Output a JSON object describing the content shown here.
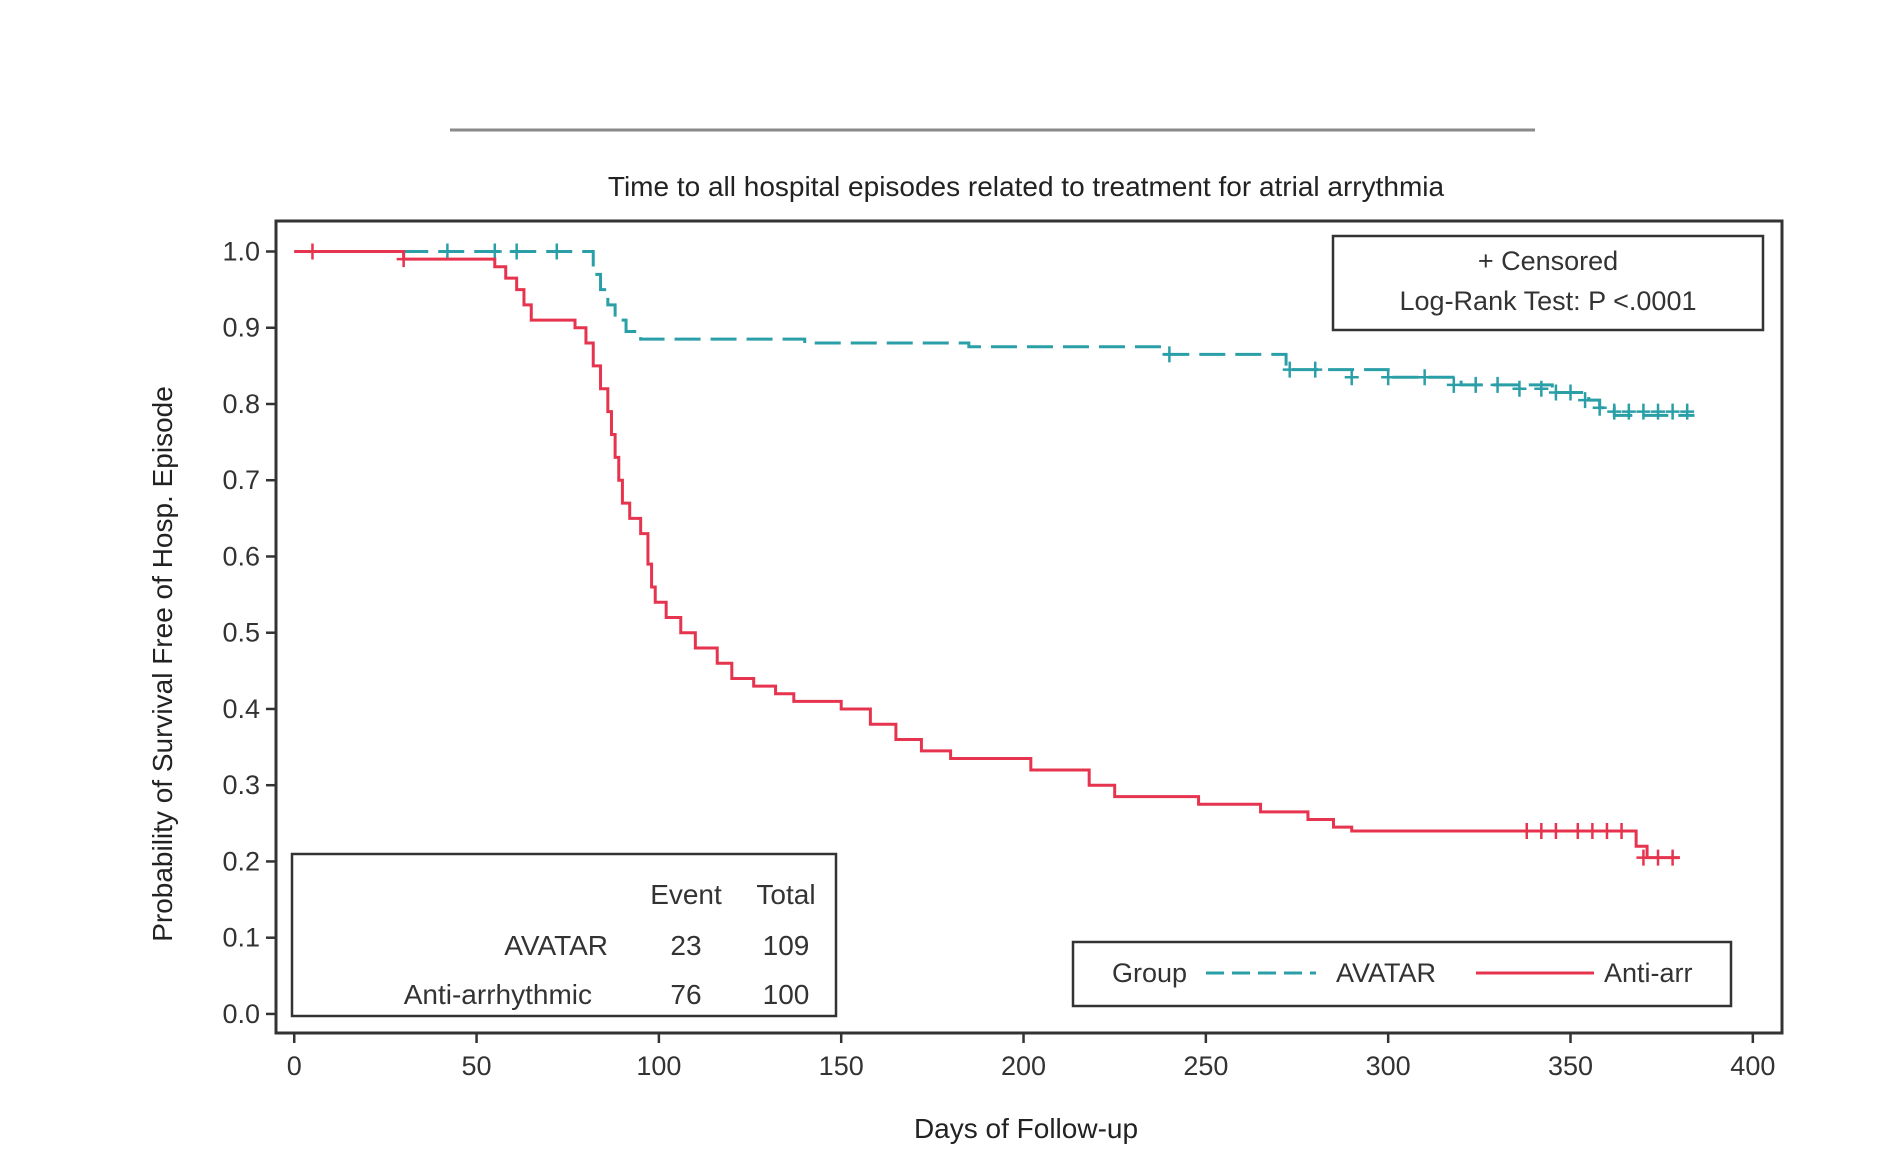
{
  "chart_data": {
    "type": "line",
    "title": "Time to all hospital episodes related to treatment for atrial arrythmia",
    "xlabel": "Days of Follow-up",
    "ylabel": "Probability of Survival Free of Hosp. Episode",
    "xlim": [
      -5,
      408
    ],
    "ylim": [
      -0.025,
      1.04
    ],
    "x_ticks": [
      "0",
      "50",
      "100",
      "150",
      "200",
      "250",
      "300",
      "350",
      "400"
    ],
    "y_ticks": [
      "0.0",
      "0.1",
      "0.2",
      "0.3",
      "0.4",
      "0.5",
      "0.6",
      "0.7",
      "0.8",
      "0.9",
      "1.0"
    ],
    "grid": false,
    "annotation": {
      "censored": "+ Censored",
      "logrank": "Log-Rank Test: P <.0001"
    },
    "risk_table": {
      "header": [
        "Event",
        "Total"
      ],
      "rows": [
        {
          "group": "AVATAR",
          "event": "23",
          "total": "109"
        },
        {
          "group": "Anti-arrhythmic",
          "event": "76",
          "total": "100"
        }
      ]
    },
    "legend": {
      "title": "Group",
      "placement": "bottom-right",
      "items": [
        {
          "label": "AVATAR",
          "color": "#2a9fa8",
          "dash": true
        },
        {
          "label": "Anti-arr",
          "color": "#e6344e",
          "dash": false
        }
      ]
    },
    "series": [
      {
        "name": "AVATAR",
        "color": "#2a9fa8",
        "steps": [
          [
            0,
            1.0
          ],
          [
            82,
            0.97
          ],
          [
            84,
            0.95
          ],
          [
            86,
            0.93
          ],
          [
            88,
            0.91
          ],
          [
            91,
            0.895
          ],
          [
            95,
            0.885
          ],
          [
            140,
            0.88
          ],
          [
            185,
            0.875
          ],
          [
            238,
            0.865
          ],
          [
            272,
            0.845
          ],
          [
            300,
            0.835
          ],
          [
            320,
            0.825
          ],
          [
            345,
            0.815
          ],
          [
            355,
            0.805
          ],
          [
            358,
            0.795
          ],
          [
            362,
            0.785
          ],
          [
            384,
            0.785
          ]
        ],
        "censored": [
          [
            42,
            1.0
          ],
          [
            55,
            1.0
          ],
          [
            61,
            1.0
          ],
          [
            72,
            1.0
          ],
          [
            240,
            0.865
          ],
          [
            273,
            0.845
          ],
          [
            280,
            0.845
          ],
          [
            290,
            0.835
          ],
          [
            300,
            0.835
          ],
          [
            310,
            0.835
          ],
          [
            318,
            0.825
          ],
          [
            324,
            0.825
          ],
          [
            330,
            0.825
          ],
          [
            336,
            0.82
          ],
          [
            342,
            0.82
          ],
          [
            346,
            0.815
          ],
          [
            350,
            0.815
          ],
          [
            354,
            0.805
          ],
          [
            358,
            0.795
          ],
          [
            362,
            0.79
          ],
          [
            366,
            0.79
          ],
          [
            370,
            0.79
          ],
          [
            374,
            0.79
          ],
          [
            378,
            0.79
          ],
          [
            382,
            0.79
          ]
        ]
      },
      {
        "name": "Anti-arrhythmic",
        "color": "#e6344e",
        "steps": [
          [
            0,
            1.0
          ],
          [
            30,
            0.99
          ],
          [
            55,
            0.98
          ],
          [
            58,
            0.965
          ],
          [
            61,
            0.95
          ],
          [
            63,
            0.93
          ],
          [
            65,
            0.91
          ],
          [
            77,
            0.9
          ],
          [
            80,
            0.88
          ],
          [
            82,
            0.85
          ],
          [
            84,
            0.82
          ],
          [
            86,
            0.79
          ],
          [
            87,
            0.76
          ],
          [
            88,
            0.73
          ],
          [
            89,
            0.7
          ],
          [
            90,
            0.67
          ],
          [
            92,
            0.65
          ],
          [
            95,
            0.63
          ],
          [
            97,
            0.59
          ],
          [
            98,
            0.56
          ],
          [
            99,
            0.54
          ],
          [
            102,
            0.52
          ],
          [
            106,
            0.5
          ],
          [
            110,
            0.48
          ],
          [
            116,
            0.46
          ],
          [
            120,
            0.44
          ],
          [
            126,
            0.43
          ],
          [
            132,
            0.42
          ],
          [
            137,
            0.41
          ],
          [
            150,
            0.4
          ],
          [
            158,
            0.38
          ],
          [
            165,
            0.36
          ],
          [
            172,
            0.345
          ],
          [
            180,
            0.335
          ],
          [
            202,
            0.32
          ],
          [
            218,
            0.3
          ],
          [
            225,
            0.285
          ],
          [
            248,
            0.275
          ],
          [
            265,
            0.265
          ],
          [
            278,
            0.255
          ],
          [
            285,
            0.245
          ],
          [
            290,
            0.24
          ],
          [
            368,
            0.22
          ],
          [
            371,
            0.205
          ],
          [
            380,
            0.205
          ]
        ],
        "censored": [
          [
            5,
            1.0
          ],
          [
            30,
            0.99
          ],
          [
            338,
            0.24
          ],
          [
            342,
            0.24
          ],
          [
            346,
            0.24
          ],
          [
            352,
            0.24
          ],
          [
            356,
            0.24
          ],
          [
            360,
            0.24
          ],
          [
            364,
            0.24
          ],
          [
            370,
            0.205
          ],
          [
            374,
            0.205
          ],
          [
            378,
            0.205
          ]
        ]
      }
    ]
  }
}
